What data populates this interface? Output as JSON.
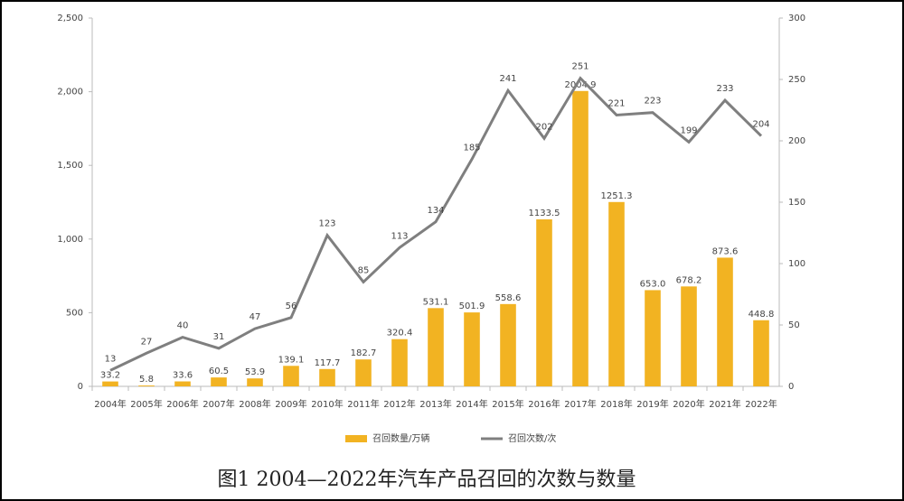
{
  "chart_data": {
    "type": "combo",
    "title": "图1 2004—2022年汽车产品召回的次数与数量",
    "categories": [
      "2004年",
      "2005年",
      "2006年",
      "2007年",
      "2008年",
      "2009年",
      "2010年",
      "2011年",
      "2012年",
      "2013年",
      "2014年",
      "2015年",
      "2016年",
      "2017年",
      "2018年",
      "2019年",
      "2020年",
      "2021年",
      "2022年"
    ],
    "series": [
      {
        "name": "召回数量/万辆",
        "color": "#f2b322",
        "type": "bar",
        "values": [
          33.2,
          5.8,
          33.6,
          60.5,
          53.9,
          139.1,
          117.7,
          182.7,
          320.4,
          531.1,
          501.9,
          558.6,
          1133.5,
          2004.9,
          1251.3,
          653.0,
          678.2,
          873.6,
          448.8
        ],
        "value_labels": [
          "33.2",
          "5.8",
          "33.6",
          "60.5",
          "53.9",
          "139.1",
          "117.7",
          "182.7",
          "320.4",
          "531.1",
          "501.9",
          "558.6",
          "1133.5",
          "2004.9",
          "1251.3",
          "653.0",
          "678.2",
          "873.6",
          "448.8"
        ]
      },
      {
        "name": "召回次数/次",
        "color": "#7f7f7f",
        "type": "line",
        "axis": "y2",
        "values": [
          13,
          27,
          40,
          31,
          47,
          56,
          123,
          85,
          113,
          134,
          185,
          241,
          202,
          251,
          221,
          223,
          199,
          233,
          204
        ]
      }
    ],
    "ylim": [
      0,
      2500
    ],
    "yticks": [
      0,
      500,
      {
        "value": 1000,
        "label": "1,000"
      },
      {
        "value": 1500,
        "label": "1,500"
      },
      {
        "value": 2000,
        "label": "2,000"
      },
      {
        "value": 2500,
        "label": "2,500"
      }
    ],
    "y2lim": [
      0,
      300
    ],
    "y2ticks": [
      0,
      50,
      100,
      150,
      200,
      250,
      300
    ],
    "grid": false
  }
}
